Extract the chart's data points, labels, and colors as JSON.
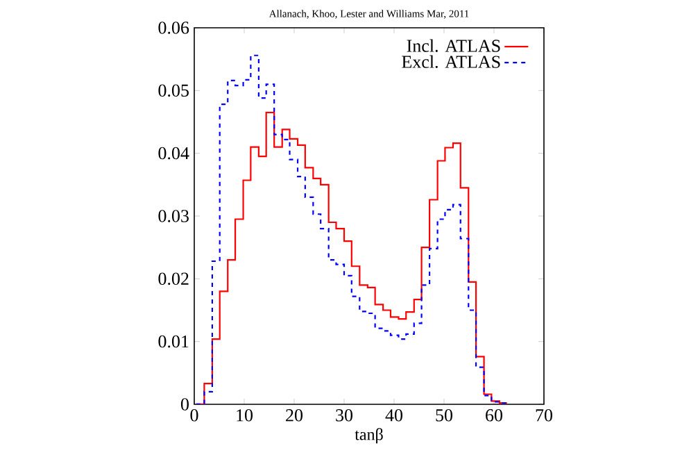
{
  "chart_data": {
    "type": "histogram",
    "title": "Allanach, Khoo, Lester and Williams Mar, 2011",
    "xlabel": "tanβ",
    "bins": [
      0.4,
      2.0,
      3.6,
      5.1,
      6.7,
      8.2,
      9.8,
      11.3,
      12.9,
      14.4,
      16.0,
      17.6,
      19.1,
      20.7,
      22.2,
      23.8,
      25.3,
      26.9,
      28.4,
      30.0,
      31.5,
      33.1,
      34.7,
      36.2,
      37.8,
      39.3,
      40.9,
      42.4,
      44.0,
      45.5,
      47.1,
      48.7,
      50.2,
      51.8,
      53.3,
      54.9,
      56.4,
      58.0,
      59.5,
      61.1,
      62.6
    ],
    "series": [
      {
        "name": "Incl. ATLAS",
        "color": "#ff0000",
        "line_style": "solid",
        "values": [
          0,
          0.0033,
          0.0104,
          0.018,
          0.023,
          0.0295,
          0.0357,
          0.041,
          0.0395,
          0.0465,
          0.041,
          0.0438,
          0.0423,
          0.0413,
          0.0377,
          0.036,
          0.035,
          0.029,
          0.028,
          0.026,
          0.022,
          0.019,
          0.0186,
          0.0159,
          0.015,
          0.0139,
          0.0136,
          0.0147,
          0.0167,
          0.025,
          0.0326,
          0.0388,
          0.0409,
          0.0416,
          0.0345,
          0.0195,
          0.0076,
          0.0016,
          0.0005,
          0.0002
        ]
      },
      {
        "name": "Excl. ATLAS",
        "color": "#0000ff",
        "line_style": "dashed",
        "values": [
          0,
          0.002,
          0.0228,
          0.0478,
          0.0516,
          0.0508,
          0.0517,
          0.0556,
          0.0488,
          0.051,
          0.043,
          0.0422,
          0.039,
          0.0363,
          0.033,
          0.0303,
          0.028,
          0.023,
          0.0223,
          0.0205,
          0.0172,
          0.0148,
          0.0145,
          0.0121,
          0.0117,
          0.011,
          0.0104,
          0.0112,
          0.0129,
          0.019,
          0.0248,
          0.0295,
          0.031,
          0.0318,
          0.0264,
          0.015,
          0.0059,
          0.0014,
          0.0004,
          0.0002
        ]
      }
    ],
    "xlim": [
      0,
      70
    ],
    "ylim": [
      0,
      0.06
    ],
    "xticks": [
      0,
      10,
      20,
      30,
      40,
      50,
      60,
      70
    ],
    "yticks": [
      0,
      0.01,
      0.02,
      0.03,
      0.04,
      0.05,
      0.06
    ],
    "grid": false,
    "legend": "top right"
  }
}
